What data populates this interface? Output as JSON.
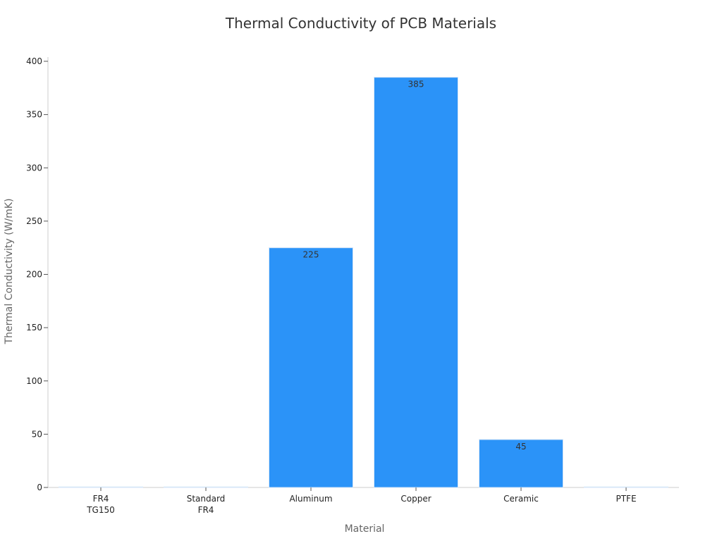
{
  "chart_data": {
    "type": "bar",
    "title": "Thermal Conductivity of PCB Materials",
    "xlabel": "Material",
    "ylabel": "Thermal Conductivity (W/mK)",
    "categories": [
      [
        "FR4",
        "TG150"
      ],
      [
        "Standard",
        "FR4"
      ],
      [
        "Aluminum"
      ],
      [
        "Copper"
      ],
      [
        "Ceramic"
      ],
      [
        "PTFE"
      ]
    ],
    "values": [
      0.3,
      0.3,
      225,
      385,
      45,
      0.25
    ],
    "data_labels": [
      "",
      "",
      "225",
      "385",
      "45",
      ""
    ],
    "ylim": [
      0,
      400
    ],
    "yticks": [
      0,
      50,
      100,
      150,
      200,
      250,
      300,
      350,
      400
    ],
    "grid": false,
    "legend": "none",
    "colors": {
      "bar": "#2b93f8",
      "bar_edge": "#d6e6f7"
    }
  }
}
